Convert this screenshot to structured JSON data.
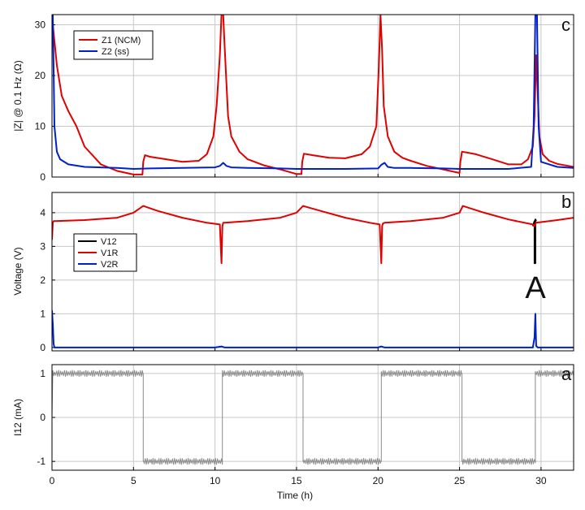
{
  "colors": {
    "black": "#000000",
    "red": "#e00000",
    "blue": "#0020c8",
    "gray": "#8a8a8a",
    "grid": "#c8c8c8"
  },
  "chart_data": [
    {
      "type": "line",
      "panel_label": "c",
      "ylabel": "|Z| @ 0.1 Hz (Ω)",
      "xlabel": "",
      "xlim": [
        0,
        32
      ],
      "ylim": [
        0,
        32
      ],
      "xticks": [
        "0",
        "5",
        "10",
        "15",
        "20",
        "25",
        "30"
      ],
      "yticks": [
        "0",
        "10",
        "20",
        "30"
      ],
      "legend": "top-left",
      "series": [
        {
          "name": "Z1 (NCM)",
          "color": "#e00000",
          "x": [
            0.05,
            0.3,
            0.6,
            1.0,
            1.5,
            2.0,
            3.0,
            4.0,
            5.0,
            5.55,
            5.6,
            5.7,
            6.0,
            7.0,
            8.0,
            9.0,
            9.5,
            9.9,
            10.1,
            10.3,
            10.4,
            10.5,
            10.6,
            10.8,
            11.0,
            11.5,
            12.0,
            13.0,
            14.0,
            15.0,
            15.3,
            15.35,
            15.45,
            16.0,
            17.0,
            18.0,
            19.0,
            19.5,
            19.9,
            20.05,
            20.15,
            20.25,
            20.35,
            20.6,
            21.0,
            21.5,
            22.0,
            23.0,
            24.0,
            25.0,
            25.05,
            25.15,
            25.5,
            26.0,
            27.0,
            28.0,
            28.8,
            29.2,
            29.5,
            29.6,
            29.7,
            29.8,
            29.9,
            30.1,
            30.5,
            31.0,
            32.0
          ],
          "y": [
            30,
            22,
            16,
            13,
            10,
            6,
            2.5,
            1.2,
            0.5,
            0.5,
            3.0,
            4.3,
            4.0,
            3.5,
            3.0,
            3.2,
            4.5,
            8.0,
            14.0,
            24.0,
            32,
            32,
            25.0,
            12.0,
            8.0,
            5.0,
            3.5,
            2.3,
            1.5,
            0.6,
            0.6,
            3.0,
            4.6,
            4.3,
            3.8,
            3.7,
            4.5,
            6.0,
            10.0,
            22.0,
            32,
            25.0,
            14.0,
            8.0,
            5.0,
            3.8,
            3.2,
            2.2,
            1.5,
            0.8,
            3.0,
            5.0,
            4.8,
            4.5,
            3.5,
            2.5,
            2.5,
            3.5,
            6.0,
            12.0,
            24.0,
            16.0,
            8.0,
            4.5,
            3.2,
            2.6,
            2.0
          ]
        },
        {
          "name": "Z2 (ss)",
          "color": "#0020c8",
          "x": [
            0.05,
            0.15,
            0.3,
            0.5,
            1.0,
            2.0,
            3.0,
            4.0,
            5.0,
            6.0,
            8.0,
            10.0,
            10.3,
            10.5,
            10.7,
            11.0,
            12.0,
            14.0,
            15.0,
            16.0,
            18.0,
            20.0,
            20.2,
            20.4,
            20.6,
            21.0,
            22.0,
            24.0,
            25.0,
            26.0,
            28.0,
            29.4,
            29.55,
            29.65,
            29.75,
            29.85,
            30.0,
            31.0,
            32.0
          ],
          "y": [
            32,
            10,
            5,
            3.5,
            2.5,
            2.0,
            1.9,
            1.8,
            1.6,
            1.7,
            1.8,
            1.9,
            2.2,
            2.8,
            2.2,
            1.9,
            1.8,
            1.7,
            1.6,
            1.6,
            1.6,
            1.7,
            2.4,
            2.8,
            2.0,
            1.8,
            1.8,
            1.7,
            1.6,
            1.6,
            1.6,
            2.0,
            10.0,
            32,
            32,
            10.0,
            3.0,
            2.0,
            1.8
          ]
        }
      ]
    },
    {
      "type": "line",
      "panel_label": "b",
      "ylabel": "Voltage (V)",
      "xlabel": "",
      "xlim": [
        0,
        32
      ],
      "ylim": [
        -0.1,
        4.6
      ],
      "xticks": [
        "0",
        "5",
        "10",
        "15",
        "20",
        "25",
        "30"
      ],
      "yticks": [
        "0",
        "1",
        "2",
        "3",
        "4"
      ],
      "legend": "left",
      "annotation": "A",
      "series": [
        {
          "name": "V12",
          "color": "#000000",
          "x": [
            29.5,
            29.6,
            29.6,
            29.65,
            29.65,
            29.7
          ],
          "y": [
            3.6,
            3.75,
            2.5,
            2.5,
            3.8,
            3.75
          ]
        },
        {
          "name": "V1R",
          "color": "#e00000",
          "x": [
            0.0,
            0.05,
            0.1,
            0.2,
            2.0,
            4.0,
            5.0,
            5.6,
            6.5,
            8.0,
            9.5,
            10.3,
            10.4,
            10.45,
            10.5,
            10.6,
            12.0,
            14.0,
            15.0,
            15.4,
            16.5,
            18.0,
            19.5,
            20.1,
            20.2,
            20.25,
            20.3,
            20.4,
            22.0,
            24.0,
            25.0,
            25.2,
            26.5,
            28.0,
            29.5,
            29.62,
            29.68,
            30.0,
            31.0,
            32.0
          ],
          "y": [
            3.2,
            3.7,
            3.75,
            3.75,
            3.78,
            3.85,
            4.0,
            4.2,
            4.05,
            3.85,
            3.7,
            3.65,
            2.5,
            3.6,
            3.7,
            3.7,
            3.75,
            3.85,
            4.0,
            4.2,
            4.05,
            3.85,
            3.7,
            3.65,
            2.5,
            3.6,
            3.68,
            3.7,
            3.75,
            3.85,
            4.0,
            4.2,
            4.0,
            3.8,
            3.65,
            3.6,
            3.7,
            3.72,
            3.78,
            3.85
          ]
        },
        {
          "name": "V2R",
          "color": "#0020c8",
          "x": [
            0.0,
            0.05,
            0.1,
            0.15,
            0.3,
            5.0,
            10.0,
            10.4,
            10.6,
            15.0,
            20.0,
            20.2,
            20.4,
            25.0,
            29.5,
            29.6,
            29.65,
            29.7,
            29.8,
            30.0,
            32.0
          ],
          "y": [
            1.1,
            0.7,
            0.1,
            0.0,
            0.0,
            0.0,
            0.0,
            0.03,
            0.0,
            0.0,
            0.0,
            0.03,
            0.0,
            0.0,
            0.0,
            0.3,
            1.0,
            0.05,
            0.0,
            0.0,
            0.0
          ]
        }
      ]
    },
    {
      "type": "line",
      "panel_label": "a",
      "ylabel": "I12 (mA)",
      "xlabel": "Time (h)",
      "xlim": [
        0,
        32
      ],
      "ylim": [
        -1.2,
        1.2
      ],
      "xticks": [
        "0",
        "5",
        "10",
        "15",
        "20",
        "25",
        "30"
      ],
      "yticks": [
        "-1",
        "0",
        "1"
      ],
      "series": [
        {
          "name": "",
          "color": "#8a8a8a",
          "x": [
            0.0,
            0.05,
            5.6,
            5.6,
            10.45,
            10.45,
            15.4,
            15.4,
            20.2,
            20.2,
            25.15,
            25.15,
            29.65,
            29.65,
            32.0
          ],
          "y": [
            0.0,
            1.0,
            1.0,
            -1.0,
            -1.0,
            1.0,
            1.0,
            -1.0,
            -1.0,
            1.0,
            1.0,
            -1.0,
            -1.0,
            1.0,
            1.0
          ],
          "noise": 0.07
        }
      ]
    }
  ]
}
